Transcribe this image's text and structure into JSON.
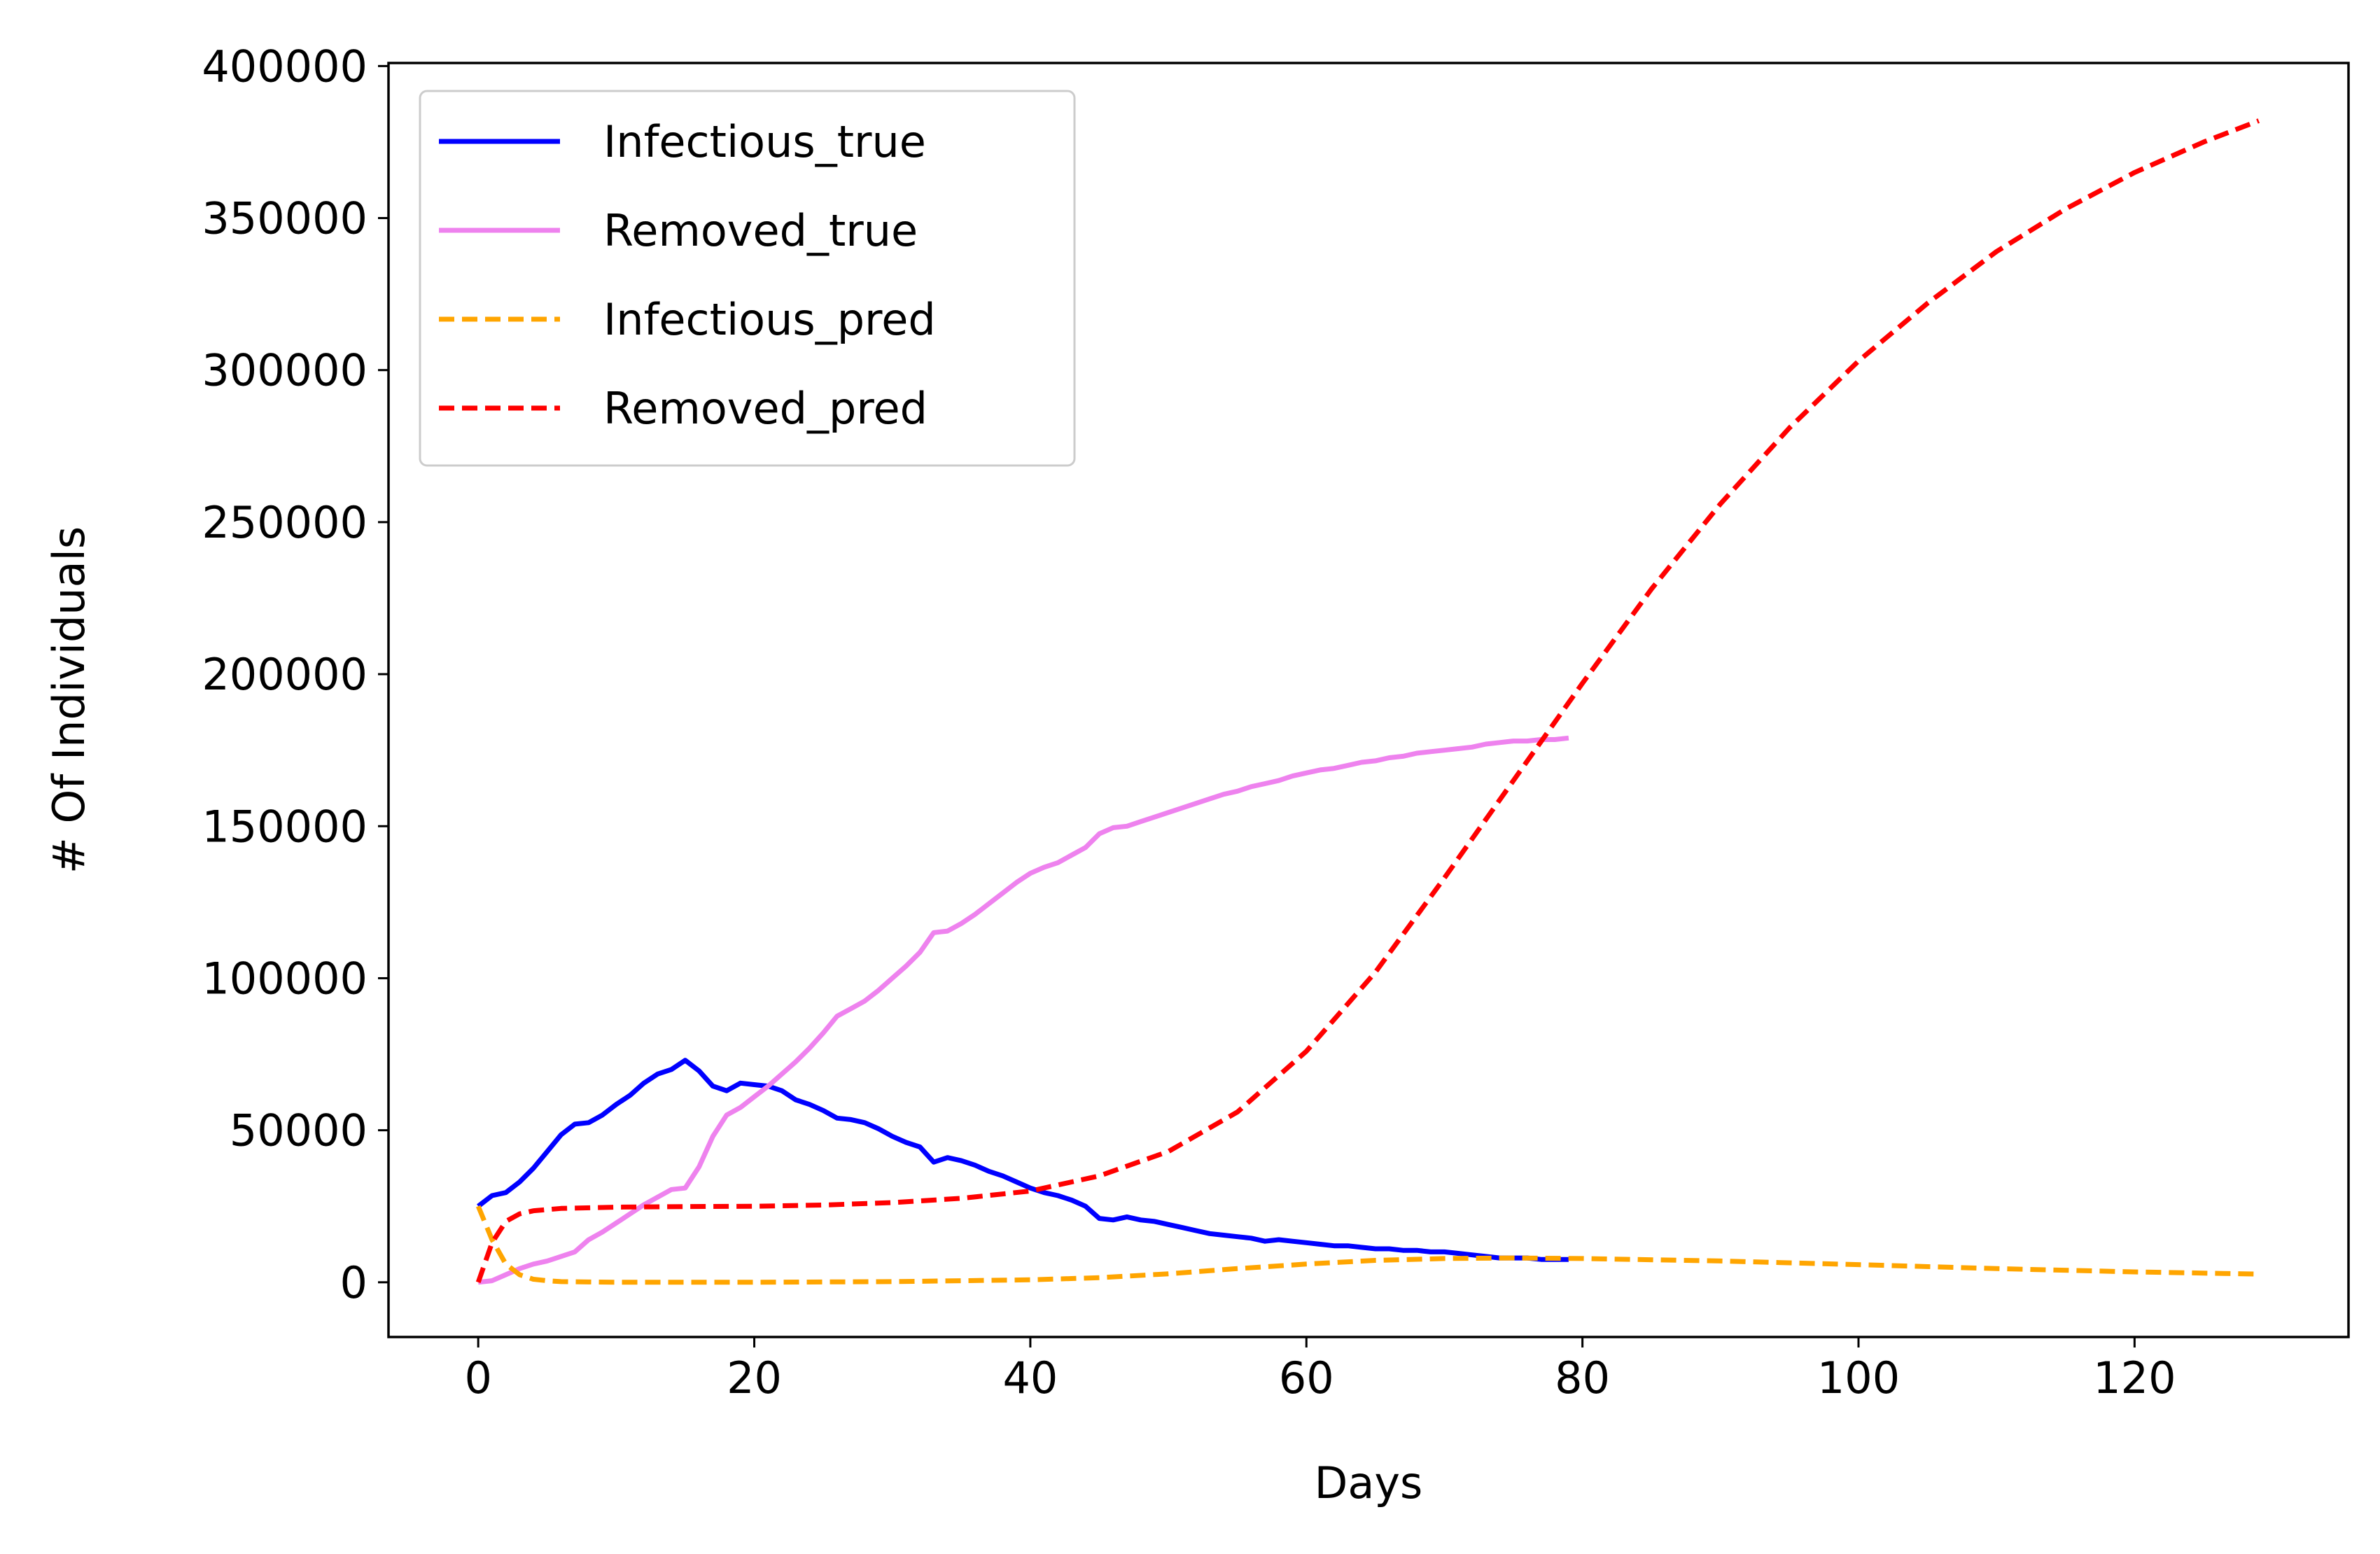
{
  "chart_data": {
    "type": "line",
    "xlabel": "Days",
    "ylabel": "# Of Individuals",
    "xlim": [
      -6.5,
      135.5
    ],
    "ylim": [
      -18000,
      401000
    ],
    "xticks": [
      0,
      20,
      40,
      60,
      80,
      100,
      120
    ],
    "yticks": [
      0,
      50000,
      100000,
      150000,
      200000,
      250000,
      300000,
      350000,
      400000
    ],
    "grid": false,
    "legend_position": "upper-left",
    "series": [
      {
        "name": "Infectious_true",
        "color": "#0000ff",
        "dash": "solid",
        "points": [
          [
            0,
            25000
          ],
          [
            1,
            28500
          ],
          [
            2,
            29500
          ],
          [
            3,
            33000
          ],
          [
            4,
            37500
          ],
          [
            5,
            43000
          ],
          [
            6,
            48500
          ],
          [
            7,
            52000
          ],
          [
            8,
            52500
          ],
          [
            9,
            55000
          ],
          [
            10,
            58500
          ],
          [
            11,
            61500
          ],
          [
            12,
            65500
          ],
          [
            13,
            68500
          ],
          [
            14,
            70000
          ],
          [
            15,
            73000
          ],
          [
            16,
            69500
          ],
          [
            17,
            64500
          ],
          [
            18,
            63000
          ],
          [
            19,
            65500
          ],
          [
            20,
            65000
          ],
          [
            21,
            64500
          ],
          [
            22,
            63000
          ],
          [
            23,
            60000
          ],
          [
            24,
            58500
          ],
          [
            25,
            56500
          ],
          [
            26,
            54000
          ],
          [
            27,
            53500
          ],
          [
            28,
            52500
          ],
          [
            29,
            50500
          ],
          [
            30,
            48000
          ],
          [
            31,
            46000
          ],
          [
            32,
            44500
          ],
          [
            33,
            39500
          ],
          [
            34,
            41000
          ],
          [
            35,
            40000
          ],
          [
            36,
            38500
          ],
          [
            37,
            36500
          ],
          [
            38,
            35000
          ],
          [
            39,
            33000
          ],
          [
            40,
            31000
          ],
          [
            41,
            29500
          ],
          [
            42,
            28500
          ],
          [
            43,
            27000
          ],
          [
            44,
            25000
          ],
          [
            45,
            21000
          ],
          [
            46,
            20500
          ],
          [
            47,
            21500
          ],
          [
            48,
            20500
          ],
          [
            49,
            20000
          ],
          [
            50,
            19000
          ],
          [
            51,
            18000
          ],
          [
            52,
            17000
          ],
          [
            53,
            16000
          ],
          [
            54,
            15500
          ],
          [
            55,
            15000
          ],
          [
            56,
            14500
          ],
          [
            57,
            13500
          ],
          [
            58,
            14000
          ],
          [
            59,
            13500
          ],
          [
            60,
            13000
          ],
          [
            61,
            12500
          ],
          [
            62,
            12000
          ],
          [
            63,
            12000
          ],
          [
            64,
            11500
          ],
          [
            65,
            11000
          ],
          [
            66,
            11000
          ],
          [
            67,
            10500
          ],
          [
            68,
            10500
          ],
          [
            69,
            10000
          ],
          [
            70,
            10000
          ],
          [
            71,
            9500
          ],
          [
            72,
            9000
          ],
          [
            73,
            8500
          ],
          [
            74,
            8000
          ],
          [
            75,
            8000
          ],
          [
            76,
            8000
          ],
          [
            77,
            7500
          ],
          [
            78,
            7500
          ],
          [
            79,
            7500
          ]
        ]
      },
      {
        "name": "Removed_true",
        "color": "#ee82ee",
        "dash": "solid",
        "points": [
          [
            0,
            0
          ],
          [
            1,
            500
          ],
          [
            2,
            2500
          ],
          [
            3,
            4500
          ],
          [
            4,
            6000
          ],
          [
            5,
            7000
          ],
          [
            6,
            8500
          ],
          [
            7,
            10000
          ],
          [
            8,
            14000
          ],
          [
            9,
            16500
          ],
          [
            10,
            19500
          ],
          [
            11,
            22500
          ],
          [
            12,
            25500
          ],
          [
            13,
            28000
          ],
          [
            14,
            30500
          ],
          [
            15,
            31000
          ],
          [
            16,
            38000
          ],
          [
            17,
            48000
          ],
          [
            18,
            55000
          ],
          [
            19,
            57500
          ],
          [
            20,
            61000
          ],
          [
            21,
            64500
          ],
          [
            22,
            68500
          ],
          [
            23,
            72500
          ],
          [
            24,
            77000
          ],
          [
            25,
            82000
          ],
          [
            26,
            87500
          ],
          [
            27,
            90000
          ],
          [
            28,
            92500
          ],
          [
            29,
            96000
          ],
          [
            30,
            100000
          ],
          [
            31,
            104000
          ],
          [
            32,
            108500
          ],
          [
            33,
            115000
          ],
          [
            34,
            115500
          ],
          [
            35,
            118000
          ],
          [
            36,
            121000
          ],
          [
            37,
            124500
          ],
          [
            38,
            128000
          ],
          [
            39,
            131500
          ],
          [
            40,
            134500
          ],
          [
            41,
            136500
          ],
          [
            42,
            138000
          ],
          [
            43,
            140500
          ],
          [
            44,
            143000
          ],
          [
            45,
            147500
          ],
          [
            46,
            149500
          ],
          [
            47,
            150000
          ],
          [
            48,
            151500
          ],
          [
            49,
            153000
          ],
          [
            50,
            154500
          ],
          [
            51,
            156000
          ],
          [
            52,
            157500
          ],
          [
            53,
            159000
          ],
          [
            54,
            160500
          ],
          [
            55,
            161500
          ],
          [
            56,
            163000
          ],
          [
            57,
            164000
          ],
          [
            58,
            165000
          ],
          [
            59,
            166500
          ],
          [
            60,
            167500
          ],
          [
            61,
            168500
          ],
          [
            62,
            169000
          ],
          [
            63,
            170000
          ],
          [
            64,
            171000
          ],
          [
            65,
            171500
          ],
          [
            66,
            172500
          ],
          [
            67,
            173000
          ],
          [
            68,
            174000
          ],
          [
            69,
            174500
          ],
          [
            70,
            175000
          ],
          [
            71,
            175500
          ],
          [
            72,
            176000
          ],
          [
            73,
            177000
          ],
          [
            74,
            177500
          ],
          [
            75,
            178000
          ],
          [
            76,
            178000
          ],
          [
            77,
            178500
          ],
          [
            78,
            178500
          ],
          [
            79,
            179000
          ]
        ]
      },
      {
        "name": "Infectious_pred",
        "color": "#ffa500",
        "dash": "dashed",
        "points": [
          [
            0,
            25000
          ],
          [
            1,
            14000
          ],
          [
            2,
            6000
          ],
          [
            3,
            2500
          ],
          [
            4,
            1000
          ],
          [
            5,
            500
          ],
          [
            6,
            200
          ],
          [
            8,
            100
          ],
          [
            10,
            0
          ],
          [
            20,
            0
          ],
          [
            30,
            200
          ],
          [
            40,
            800
          ],
          [
            45,
            1500
          ],
          [
            50,
            2800
          ],
          [
            55,
            4500
          ],
          [
            60,
            6000
          ],
          [
            65,
            7200
          ],
          [
            70,
            7800
          ],
          [
            75,
            8000
          ],
          [
            80,
            7800
          ],
          [
            90,
            7000
          ],
          [
            100,
            5800
          ],
          [
            110,
            4500
          ],
          [
            120,
            3400
          ],
          [
            129,
            2700
          ]
        ]
      },
      {
        "name": "Removed_pred",
        "color": "#ff0000",
        "dash": "dashed",
        "points": [
          [
            0,
            0
          ],
          [
            1,
            13000
          ],
          [
            2,
            20000
          ],
          [
            3,
            22500
          ],
          [
            4,
            23500
          ],
          [
            6,
            24300
          ],
          [
            10,
            24700
          ],
          [
            15,
            24900
          ],
          [
            20,
            25000
          ],
          [
            25,
            25400
          ],
          [
            30,
            26200
          ],
          [
            35,
            27600
          ],
          [
            40,
            30000
          ],
          [
            45,
            35000
          ],
          [
            50,
            43000
          ],
          [
            55,
            56000
          ],
          [
            60,
            76000
          ],
          [
            65,
            102000
          ],
          [
            70,
            133000
          ],
          [
            75,
            165000
          ],
          [
            80,
            197000
          ],
          [
            85,
            228000
          ],
          [
            90,
            256000
          ],
          [
            95,
            281000
          ],
          [
            100,
            303000
          ],
          [
            105,
            322000
          ],
          [
            110,
            339000
          ],
          [
            115,
            353000
          ],
          [
            120,
            365000
          ],
          [
            125,
            375000
          ],
          [
            129,
            382000
          ]
        ]
      }
    ]
  }
}
